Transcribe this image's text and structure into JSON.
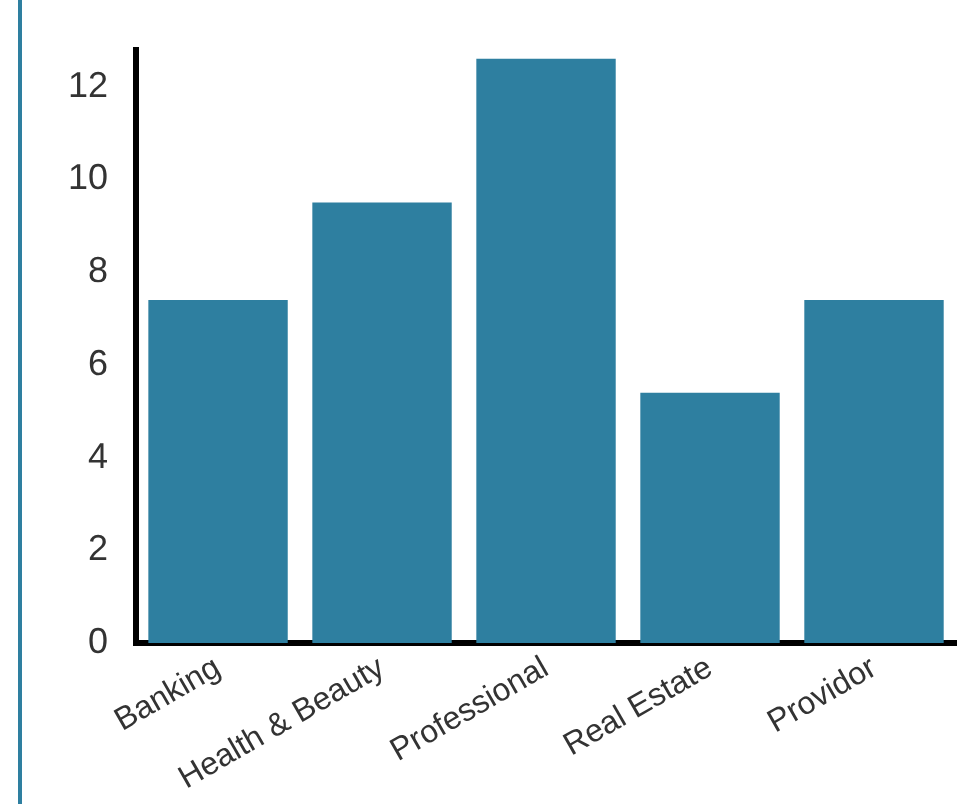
{
  "chart_data": {
    "type": "bar",
    "categories": [
      "Banking",
      "Health & Beauty",
      "Professional",
      "Real Estate",
      "Providor"
    ],
    "values": [
      7.4,
      9.5,
      12.6,
      5.4,
      7.4
    ],
    "color": "#2e7fa0",
    "ylim": [
      0,
      12.8
    ],
    "yticks": [
      0,
      2,
      4,
      6,
      8,
      10,
      12
    ],
    "grid": false,
    "legend": false
  }
}
